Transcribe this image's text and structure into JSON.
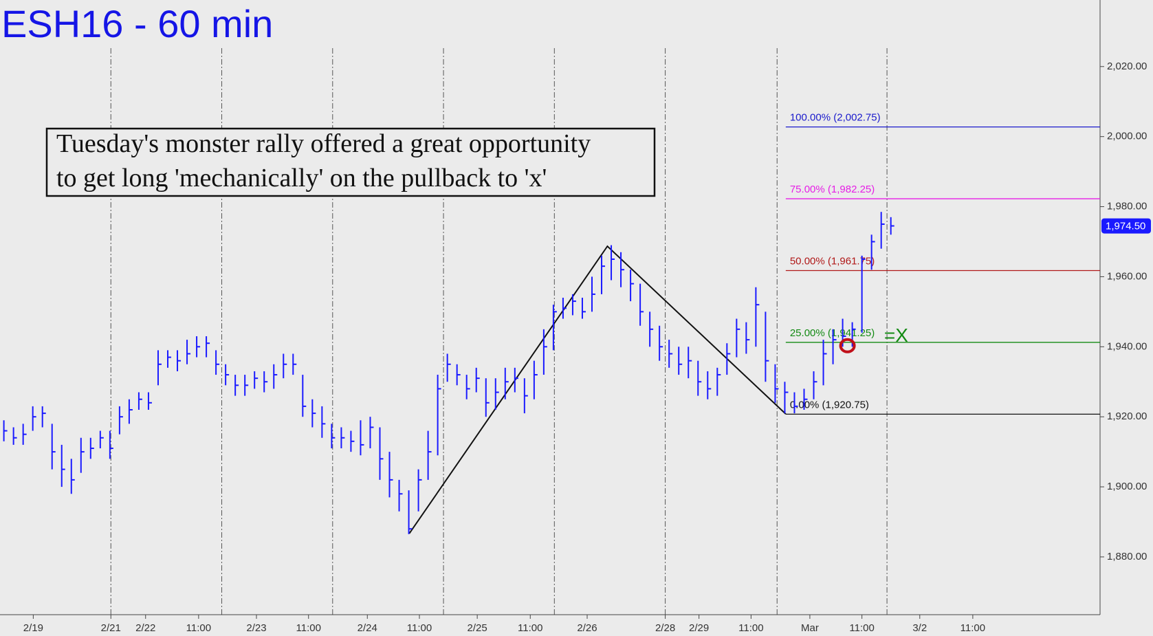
{
  "chart_data": {
    "type": "ohlc",
    "title": "ESH16 - 60 min",
    "color": "#1a1aff",
    "high": [
      1919,
      1917,
      1918,
      1923,
      1923,
      1918,
      1912,
      1908,
      1914,
      1914,
      1916,
      1916,
      1923,
      1925,
      1927,
      1927,
      1939,
      1939,
      1939,
      1942,
      1943,
      1943,
      1939,
      1935,
      1932,
      1932,
      1933,
      1933,
      1935,
      1938,
      1938,
      1932,
      1925,
      1923,
      1918,
      1917,
      1916,
      1919,
      1920,
      1917,
      1910,
      1902,
      1899,
      1905,
      1916,
      1932,
      1938,
      1935,
      1932,
      1934,
      1931,
      1931,
      1934,
      1934,
      1931,
      1936,
      1945,
      1952,
      1954,
      1955,
      1954,
      1960,
      1966,
      1969,
      1967,
      1962,
      1958,
      1950,
      1946,
      1942,
      1940,
      1940,
      1936,
      1933,
      1934,
      1941,
      1948,
      1947,
      1957,
      1950,
      1935,
      1930,
      1927,
      1928,
      1933,
      1942,
      1945,
      1948,
      1947,
      1966,
      1972,
      1978.5,
      1977
    ],
    "low": [
      1913,
      1912,
      1912,
      1916,
      1917,
      1905,
      1900,
      1898,
      1904,
      1908,
      1911,
      1908,
      1915,
      1918,
      1922,
      1922,
      1929,
      1934,
      1933,
      1935,
      1937,
      1937,
      1932,
      1929,
      1926,
      1926,
      1928,
      1927,
      1928,
      1931,
      1932,
      1920,
      1917,
      1914,
      1911,
      1911,
      1910,
      1909,
      1911,
      1902,
      1897,
      1893,
      1886.5,
      1893,
      1902,
      1909,
      1930,
      1929,
      1925,
      1927,
      1920,
      1922,
      1925,
      1927,
      1921,
      1925,
      1932,
      1939,
      1948,
      1949,
      1948,
      1950,
      1955,
      1959,
      1957,
      1953,
      1946,
      1940,
      1936,
      1934,
      1932,
      1931,
      1926,
      1925,
      1926,
      1932,
      1937,
      1938,
      1940,
      1930,
      1924,
      1921,
      1921,
      1922,
      1925,
      1929,
      1935,
      1940,
      1940,
      1944,
      1962,
      1968,
      1972
    ],
    "close": [
      1916,
      1914,
      1915,
      1920,
      1921,
      1910,
      1905,
      1902,
      1910,
      1911,
      1914,
      1911,
      1920,
      1922,
      1925,
      1924,
      1935,
      1937,
      1936,
      1938,
      1940,
      1941,
      1935,
      1932,
      1929,
      1929,
      1931,
      1930,
      1932,
      1935,
      1935,
      1923,
      1921,
      1918,
      1914,
      1914,
      1913,
      1912,
      1917,
      1908,
      1902,
      1898,
      1888,
      1902,
      1910,
      1928,
      1935,
      1932,
      1928,
      1931,
      1924,
      1927,
      1930,
      1931,
      1926,
      1932,
      1940,
      1950,
      1951,
      1953,
      1950,
      1955,
      1963,
      1965,
      1962,
      1958,
      1950,
      1945,
      1940,
      1938,
      1935,
      1936,
      1930,
      1928,
      1932,
      1938,
      1945,
      1942,
      1952,
      1936,
      1928,
      1927,
      1923,
      1925,
      1930,
      1938,
      1942,
      1943,
      1945,
      1965,
      1970,
      1975,
      1974.5
    ],
    "xlim": [
      -0.4,
      113.7
    ],
    "ylim": [
      1863.5,
      2039
    ],
    "yticks": [
      {
        "value": 1880,
        "label": "1,880.00"
      },
      {
        "value": 1900,
        "label": "1,900.00"
      },
      {
        "value": 1920,
        "label": "1,920.00"
      },
      {
        "value": 1940,
        "label": "1,940.00"
      },
      {
        "value": 1960,
        "label": "1,960.00"
      },
      {
        "value": 1980,
        "label": "1,980.00"
      },
      {
        "value": 2000,
        "label": "2,000.00"
      },
      {
        "value": 2020,
        "label": "2,020.00"
      }
    ],
    "xticks": [
      {
        "value": 3.05,
        "label": "2/19"
      },
      {
        "value": 11.1,
        "label": "2/21"
      },
      {
        "value": 14.7,
        "label": "2/22"
      },
      {
        "value": 20.2,
        "label": "11:00"
      },
      {
        "value": 26.2,
        "label": "2/23"
      },
      {
        "value": 31.6,
        "label": "11:00"
      },
      {
        "value": 37.7,
        "label": "2/24"
      },
      {
        "value": 43.1,
        "label": "11:00"
      },
      {
        "value": 49.1,
        "label": "2/25"
      },
      {
        "value": 54.6,
        "label": "11:00"
      },
      {
        "value": 60.5,
        "label": "2/26"
      },
      {
        "value": 68.6,
        "label": "2/28"
      },
      {
        "value": 72.1,
        "label": "2/29"
      },
      {
        "value": 77.5,
        "label": "11:00"
      },
      {
        "value": 83.6,
        "label": "Mar"
      },
      {
        "value": 89.0,
        "label": "11:00"
      },
      {
        "value": 95.0,
        "label": "3/2"
      },
      {
        "value": 100.5,
        "label": "11:00"
      }
    ],
    "session_lines": [
      11.1,
      22.6,
      34.1,
      45.6,
      57.1,
      68.6,
      80.2,
      91.6
    ],
    "fib_start_x": 81.1,
    "fib_levels": [
      {
        "value": 2002.75,
        "label": "100.00% (2,002.75)",
        "color": "#1a1acc"
      },
      {
        "value": 1982.25,
        "label": "75.00% (1,982.25)",
        "color": "#e61ee6"
      },
      {
        "value": 1961.75,
        "label": "50.00% (1,961.75)",
        "color": "#b01818"
      },
      {
        "value": 1941.25,
        "label": "25.00% (1,941.25)",
        "color": "#138a13"
      },
      {
        "value": 1920.75,
        "label": "0.00% (1,920.75)",
        "color": "#111111"
      }
    ],
    "zigzag": {
      "x": [
        42.06,
        62.6,
        81.1
      ],
      "y": [
        1886.7,
        1968.7,
        1920.8
      ]
    },
    "entry_marker": {
      "x": 87.5,
      "y": 1940.3
    },
    "entry_label": "=X",
    "last_price": {
      "value": 1974.5,
      "label": "1,974.50"
    },
    "annotation": [
      "Tuesday's monster rally offered a great opportunity",
      "to get long 'mechanically' on the pullback to 'x'"
    ]
  }
}
